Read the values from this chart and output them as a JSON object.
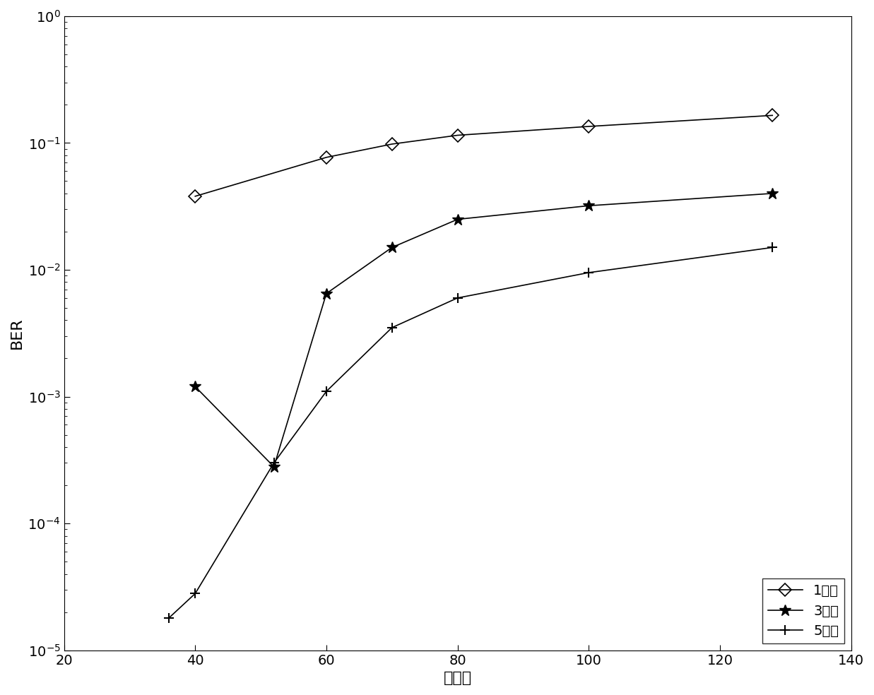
{
  "series": [
    {
      "label": "1阵元",
      "x": [
        40,
        60,
        70,
        80,
        100,
        128
      ],
      "y": [
        0.038,
        0.077,
        0.098,
        0.115,
        0.135,
        0.165
      ],
      "marker": "diamond",
      "markersize": 9,
      "color": "#000000",
      "linestyle": "-"
    },
    {
      "label": "3阵元",
      "x": [
        40,
        52,
        60,
        70,
        80,
        100,
        128
      ],
      "y": [
        0.0012,
        0.00028,
        0.0065,
        0.015,
        0.025,
        0.032,
        0.04
      ],
      "marker": "star",
      "markersize": 12,
      "color": "#000000",
      "linestyle": "-"
    },
    {
      "label": "5阵元",
      "x": [
        36,
        40,
        52,
        60,
        70,
        80,
        100,
        128
      ],
      "y": [
        1.8e-05,
        2.8e-05,
        0.0003,
        0.0011,
        0.0035,
        0.006,
        0.0095,
        0.015
      ],
      "marker": "plus",
      "markersize": 10,
      "color": "#000000",
      "linestyle": "-"
    }
  ],
  "xlabel": "用户数",
  "ylabel": "BER",
  "xlim": [
    20,
    140
  ],
  "ylim_log": [
    -5,
    0
  ],
  "xticks": [
    20,
    40,
    60,
    80,
    100,
    120,
    140
  ],
  "background_color": "#ffffff",
  "legend_loc": "lower right",
  "label_fontsize": 16,
  "tick_fontsize": 14,
  "legend_fontsize": 14
}
